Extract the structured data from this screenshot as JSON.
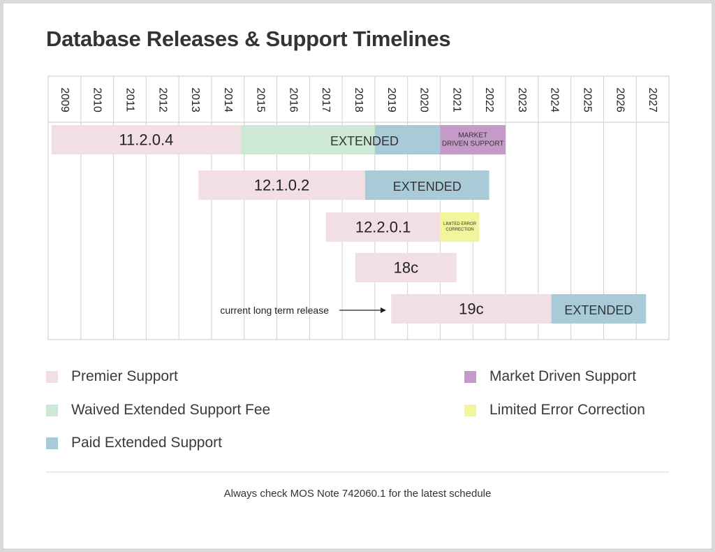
{
  "title": "Database Releases & Support Timelines",
  "colors": {
    "premier": "#f1dfe3",
    "waived": "#cde8d4",
    "paid": "#a9cbd7",
    "market": "#c39ac8",
    "limited": "#f1f59b"
  },
  "chart_data": {
    "type": "gantt",
    "title": "Database Releases & Support Timelines",
    "x_axis": {
      "type": "years",
      "range": [
        2009,
        2027
      ],
      "tick_labels": [
        "2009",
        "2010",
        "2011",
        "2012",
        "2013",
        "2014",
        "2015",
        "2016",
        "2017",
        "2018",
        "2019",
        "2020",
        "2021",
        "2022",
        "2023",
        "2024",
        "2025",
        "2026",
        "2027"
      ]
    },
    "grid": true,
    "releases": [
      {
        "label": "11.2.0.4",
        "segments": [
          {
            "type": "premier",
            "start": 2009.1,
            "end": 2014.9
          },
          {
            "type": "waived",
            "start": 2014.9,
            "end": 2019.0
          },
          {
            "type": "paid",
            "start": 2019.0,
            "end": 2021.0
          },
          {
            "type": "market",
            "start": 2021.0,
            "end": 2023.0,
            "text": "MARKET DRIVEN SUPPORT"
          }
        ],
        "extended_text": "EXTENDED"
      },
      {
        "label": "12.1.0.2",
        "segments": [
          {
            "type": "premier",
            "start": 2013.6,
            "end": 2018.7
          },
          {
            "type": "paid",
            "start": 2018.7,
            "end": 2022.5
          }
        ],
        "extended_text": "EXTENDED"
      },
      {
        "label": "12.2.0.1",
        "segments": [
          {
            "type": "premier",
            "start": 2017.5,
            "end": 2021.0
          },
          {
            "type": "limited",
            "start": 2021.0,
            "end": 2022.2,
            "text": "LIMITED ERROR CORRECTION"
          }
        ]
      },
      {
        "label": "18c",
        "segments": [
          {
            "type": "premier",
            "start": 2018.4,
            "end": 2021.5
          }
        ]
      },
      {
        "label": "19c",
        "segments": [
          {
            "type": "premier",
            "start": 2019.5,
            "end": 2024.4
          },
          {
            "type": "paid",
            "start": 2024.4,
            "end": 2027.3
          }
        ],
        "extended_text": "EXTENDED"
      }
    ],
    "annotation": {
      "text": "current long term release",
      "points_to": "19c"
    }
  },
  "legend": [
    {
      "key": "premier",
      "label": "Premier Support"
    },
    {
      "key": "waived",
      "label": "Waived Extended Support Fee"
    },
    {
      "key": "paid",
      "label": "Paid Extended Support"
    },
    {
      "key": "market",
      "label": "Market Driven Support"
    },
    {
      "key": "limited",
      "label": "Limited Error Correction"
    }
  ],
  "footnote": "Always check MOS Note 742060.1 for the latest schedule"
}
